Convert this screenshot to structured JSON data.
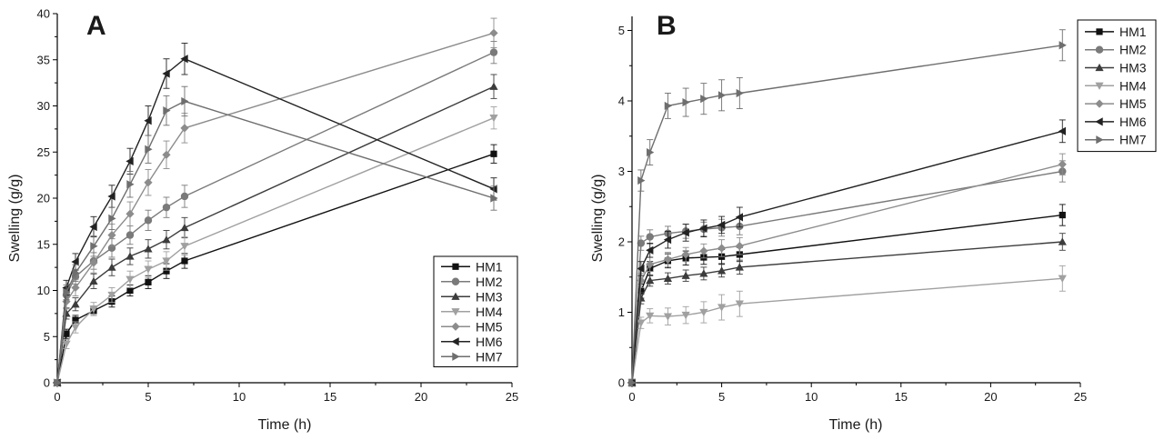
{
  "chart_data": [
    {
      "type": "line",
      "panel_label": "A",
      "xlabel": "Time (h)",
      "ylabel": "Swelling (g/g)",
      "xlim": [
        0,
        25
      ],
      "ylim": [
        0,
        40
      ],
      "xticks": [
        0,
        5,
        10,
        15,
        20,
        25
      ],
      "yticks": [
        0,
        5,
        10,
        15,
        20,
        25,
        30,
        35,
        40
      ],
      "grid": false,
      "legend_position": "bottom-right",
      "series": [
        {
          "name": "HM1",
          "marker": "square",
          "color": "#111111",
          "x": [
            0,
            0.5,
            1,
            2,
            3,
            4,
            5,
            6,
            7,
            24
          ],
          "y": [
            0,
            5.3,
            6.8,
            7.8,
            8.8,
            10.0,
            10.9,
            12.1,
            13.2,
            24.8
          ],
          "err": [
            0.2,
            0.5,
            0.5,
            0.5,
            0.6,
            0.6,
            0.7,
            0.8,
            0.8,
            1.0
          ]
        },
        {
          "name": "HM2",
          "marker": "circle",
          "color": "#7a7a7a",
          "x": [
            0,
            0.5,
            1,
            2,
            3,
            4,
            5,
            6,
            7,
            24
          ],
          "y": [
            0,
            9.5,
            11.5,
            13.2,
            14.6,
            16.0,
            17.6,
            19.0,
            20.2,
            35.8
          ],
          "err": [
            0.2,
            0.7,
            0.8,
            0.9,
            1.0,
            1.0,
            1.1,
            1.1,
            1.2,
            1.2
          ]
        },
        {
          "name": "HM3",
          "marker": "triangle-up",
          "color": "#3c3c3c",
          "x": [
            0,
            0.5,
            1,
            2,
            3,
            4,
            5,
            6,
            7,
            24
          ],
          "y": [
            0,
            7.5,
            8.5,
            11.0,
            12.5,
            13.7,
            14.5,
            15.5,
            16.8,
            32.1
          ],
          "err": [
            0.2,
            0.6,
            0.7,
            0.8,
            0.9,
            0.9,
            1.0,
            1.0,
            1.1,
            1.3
          ]
        },
        {
          "name": "HM4",
          "marker": "triangle-down",
          "color": "#a0a0a0",
          "x": [
            0,
            0.5,
            1,
            2,
            3,
            4,
            5,
            6,
            7,
            24
          ],
          "y": [
            0,
            4.2,
            6.0,
            8.0,
            9.5,
            11.2,
            12.3,
            13.2,
            14.8,
            28.7
          ],
          "err": [
            0.2,
            0.5,
            0.6,
            0.7,
            0.8,
            0.9,
            0.9,
            1.0,
            1.0,
            1.2
          ]
        },
        {
          "name": "HM5",
          "marker": "diamond",
          "color": "#8c8c8c",
          "x": [
            0,
            0.5,
            1,
            2,
            3,
            4,
            5,
            6,
            7,
            24
          ],
          "y": [
            0,
            8.8,
            10.3,
            13.0,
            16.0,
            18.3,
            21.7,
            24.7,
            27.6,
            37.9
          ],
          "err": [
            0.2,
            0.8,
            0.9,
            1.1,
            1.2,
            1.3,
            1.4,
            1.5,
            1.6,
            1.6
          ]
        },
        {
          "name": "HM6",
          "marker": "triangle-left",
          "color": "#222222",
          "x": [
            0,
            0.5,
            1,
            2,
            3,
            4,
            5,
            6,
            7,
            24
          ],
          "y": [
            0,
            10.3,
            13.1,
            16.9,
            20.2,
            24.0,
            28.4,
            33.5,
            35.1,
            21.0
          ],
          "err": [
            0.2,
            0.8,
            0.9,
            1.1,
            1.2,
            1.4,
            1.6,
            1.6,
            1.7,
            1.2
          ]
        },
        {
          "name": "HM7",
          "marker": "triangle-right",
          "color": "#6e6e6e",
          "x": [
            0,
            0.5,
            1,
            2,
            3,
            4,
            5,
            6,
            7,
            24
          ],
          "y": [
            0,
            9.8,
            11.9,
            14.8,
            17.8,
            21.5,
            25.3,
            29.5,
            30.5,
            20.0
          ],
          "err": [
            0.2,
            0.8,
            0.9,
            1.1,
            1.2,
            1.4,
            1.5,
            1.6,
            1.6,
            1.3
          ]
        }
      ]
    },
    {
      "type": "line",
      "panel_label": "B",
      "xlabel": "Time (h)",
      "ylabel": "Swelling (g/g)",
      "xlim": [
        0,
        25
      ],
      "ylim": [
        0,
        5.2
      ],
      "xticks": [
        0,
        5,
        10,
        15,
        20,
        25
      ],
      "yticks": [
        0,
        1,
        2,
        3,
        4,
        5
      ],
      "grid": false,
      "legend_position": "top-right",
      "series": [
        {
          "name": "HM1",
          "marker": "square",
          "color": "#111111",
          "x": [
            0,
            0.5,
            1,
            2,
            3,
            4,
            5,
            6,
            24
          ],
          "y": [
            0,
            1.3,
            1.62,
            1.73,
            1.77,
            1.78,
            1.79,
            1.82,
            2.38
          ],
          "err": [
            0.02,
            0.1,
            0.1,
            0.1,
            0.1,
            0.1,
            0.1,
            0.1,
            0.15
          ]
        },
        {
          "name": "HM2",
          "marker": "circle",
          "color": "#7a7a7a",
          "x": [
            0,
            0.5,
            1,
            2,
            3,
            4,
            5,
            6,
            24
          ],
          "y": [
            0,
            1.98,
            2.07,
            2.12,
            2.15,
            2.18,
            2.2,
            2.22,
            3.0
          ],
          "err": [
            0.02,
            0.1,
            0.1,
            0.1,
            0.1,
            0.1,
            0.12,
            0.12,
            0.15
          ]
        },
        {
          "name": "HM3",
          "marker": "triangle-up",
          "color": "#3c3c3c",
          "x": [
            0,
            0.5,
            1,
            2,
            3,
            4,
            5,
            6,
            24
          ],
          "y": [
            0,
            1.2,
            1.45,
            1.48,
            1.52,
            1.55,
            1.59,
            1.64,
            2.0
          ],
          "err": [
            0.02,
            0.08,
            0.08,
            0.08,
            0.08,
            0.09,
            0.09,
            0.1,
            0.12
          ]
        },
        {
          "name": "HM4",
          "marker": "triangle-down",
          "color": "#a0a0a0",
          "x": [
            0,
            0.5,
            1,
            2,
            3,
            4,
            5,
            6,
            24
          ],
          "y": [
            0,
            0.85,
            0.95,
            0.94,
            0.96,
            1.0,
            1.07,
            1.12,
            1.48
          ],
          "err": [
            0.02,
            0.08,
            0.1,
            0.12,
            0.12,
            0.15,
            0.18,
            0.18,
            0.18
          ]
        },
        {
          "name": "HM5",
          "marker": "diamond",
          "color": "#8c8c8c",
          "x": [
            0,
            0.5,
            1,
            2,
            3,
            4,
            5,
            6,
            24
          ],
          "y": [
            0,
            1.45,
            1.68,
            1.75,
            1.82,
            1.87,
            1.91,
            1.94,
            3.1
          ],
          "err": [
            0.02,
            0.1,
            0.1,
            0.1,
            0.1,
            0.1,
            0.12,
            0.12,
            0.15
          ]
        },
        {
          "name": "HM6",
          "marker": "triangle-left",
          "color": "#222222",
          "x": [
            0,
            0.5,
            1,
            2,
            3,
            4,
            5,
            6,
            24
          ],
          "y": [
            0,
            1.62,
            1.88,
            2.03,
            2.13,
            2.19,
            2.24,
            2.35,
            3.57
          ],
          "err": [
            0.02,
            0.1,
            0.1,
            0.12,
            0.12,
            0.12,
            0.12,
            0.14,
            0.16
          ]
        },
        {
          "name": "HM7",
          "marker": "triangle-right",
          "color": "#6e6e6e",
          "x": [
            0,
            0.5,
            1,
            2,
            3,
            4,
            5,
            6,
            24
          ],
          "y": [
            0,
            2.87,
            3.27,
            3.93,
            3.98,
            4.03,
            4.08,
            4.11,
            4.79
          ],
          "err": [
            0.05,
            0.15,
            0.18,
            0.18,
            0.2,
            0.22,
            0.22,
            0.22,
            0.22
          ]
        }
      ]
    }
  ]
}
